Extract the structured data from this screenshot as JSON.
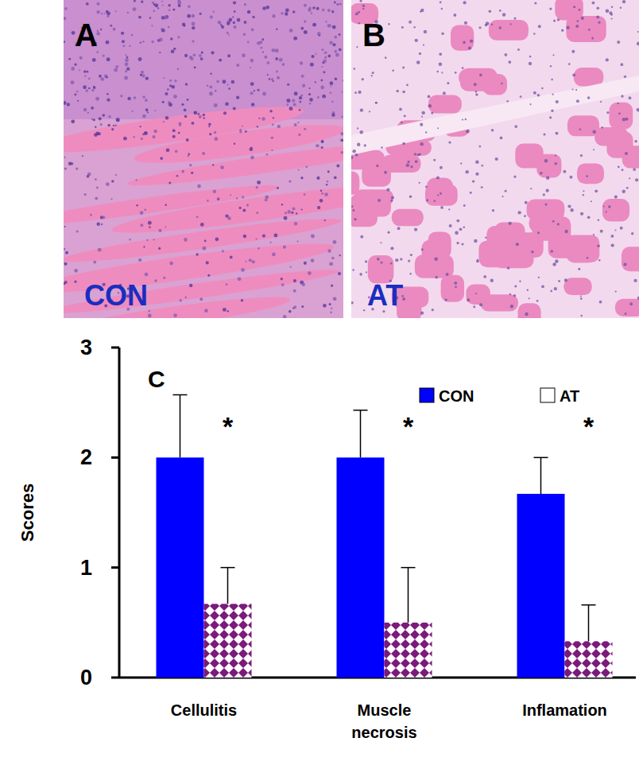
{
  "panels": [
    {
      "label": "A",
      "caption": "CON"
    },
    {
      "label": "B",
      "caption": "AT"
    }
  ],
  "chart_data": {
    "type": "bar",
    "title": "C",
    "y_label": "Scores",
    "categories": [
      "Cellulitis",
      "Muscle necrosis",
      "Inflamation"
    ],
    "series": [
      {
        "name": "CON",
        "color": "#0000ff",
        "values": [
          2.0,
          2.0,
          1.67
        ],
        "errors": [
          0.57,
          0.43,
          0.33
        ]
      },
      {
        "name": "AT",
        "color": "#7b1a7b",
        "values": [
          0.67,
          0.5,
          0.33
        ],
        "errors": [
          0.33,
          0.5,
          0.33
        ]
      }
    ],
    "annotations": [
      "*",
      "*",
      "*"
    ],
    "ylim": [
      0,
      3
    ],
    "yticks": [
      0,
      1,
      2,
      3
    ],
    "legend": "upper right"
  }
}
